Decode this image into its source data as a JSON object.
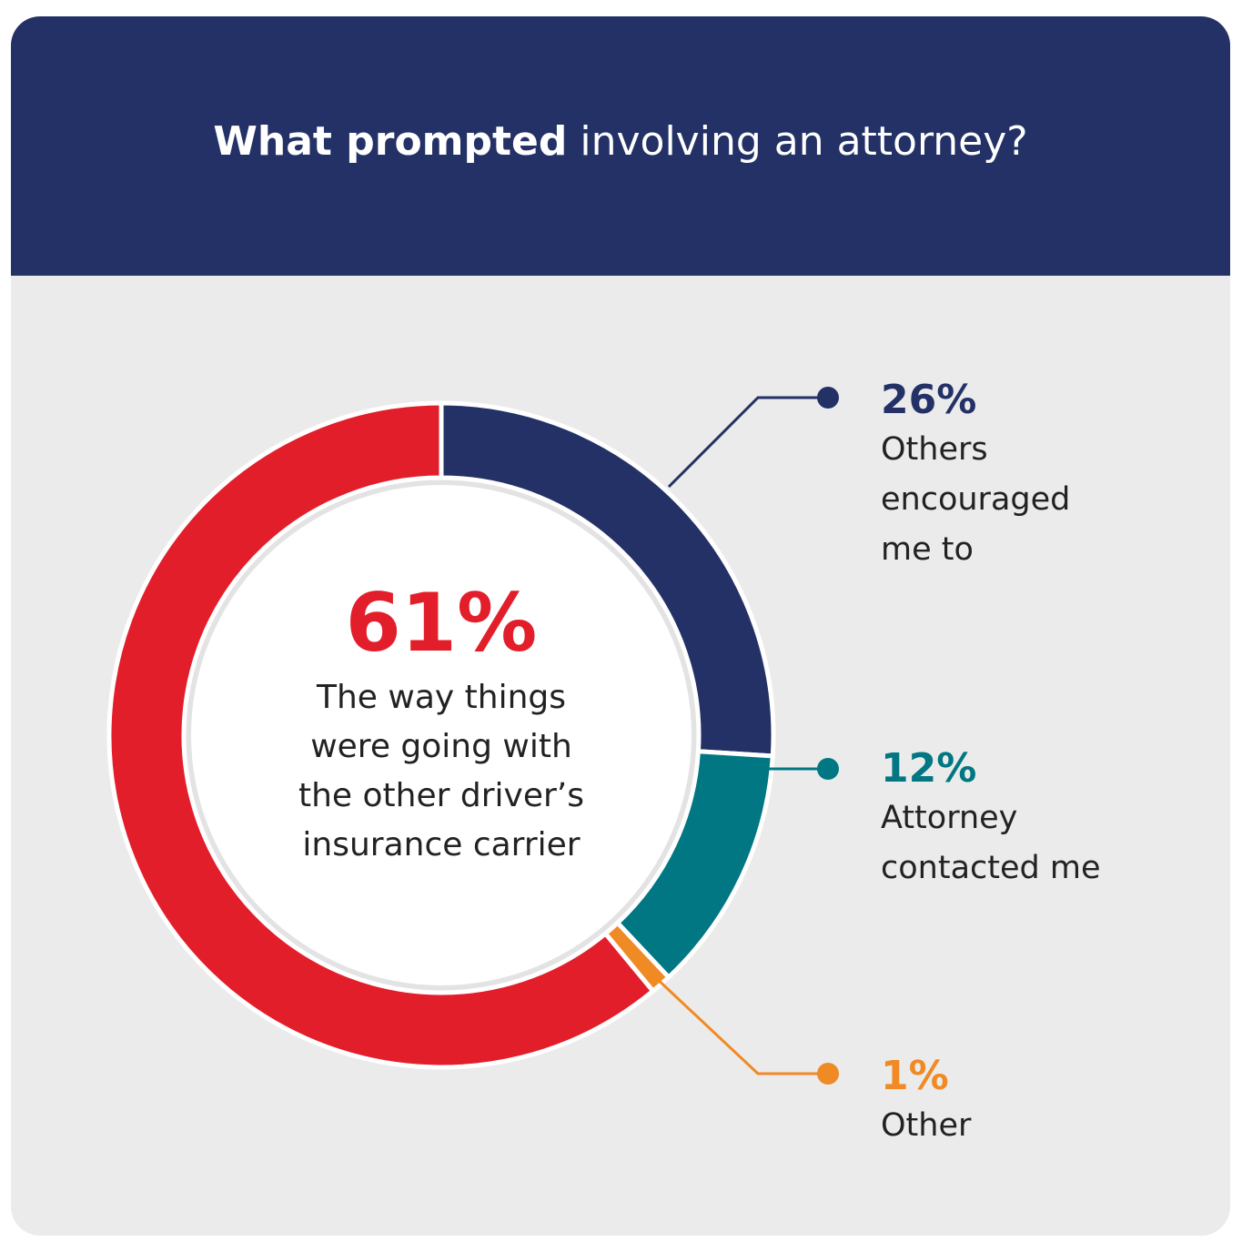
{
  "chart_data": {
    "type": "donut",
    "title": {
      "bold": "What prompted",
      "regular": "involving an attorney?"
    },
    "categories": [
      "Others encouraged me to",
      "Attorney contacted me",
      "Other",
      "The way things were going with the other driver’s insurance carrier"
    ],
    "values": [
      26,
      12,
      1,
      61
    ],
    "value_labels": [
      "26%",
      "12%",
      "1%",
      "61%"
    ],
    "colors": [
      "#233166",
      "#007782",
      "#f08a24",
      "#e31e2b"
    ]
  }
}
